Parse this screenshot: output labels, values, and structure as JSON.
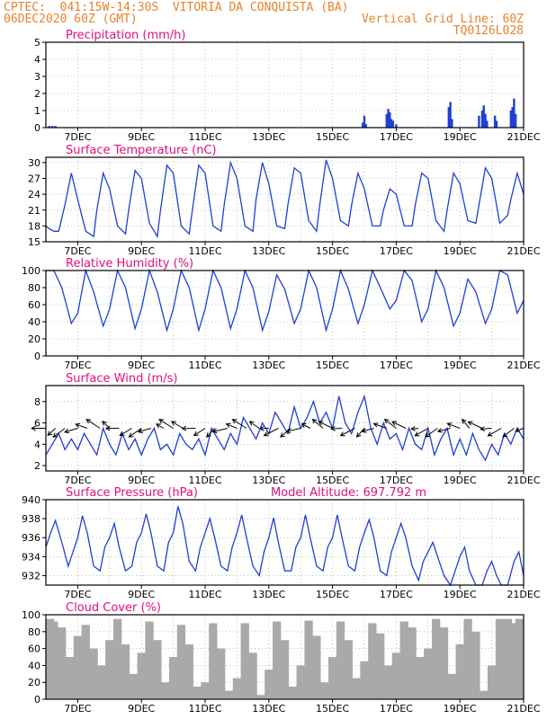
{
  "header": {
    "line1": "CPTEC:  041:15W-14:30S  VITORIA DA CONQUISTA (BA)",
    "line2_left": "06DEC2020 60Z (GMT)",
    "line2_right": "Vertical Grid Line: 60Z",
    "line3_right": "TQ0126L028"
  },
  "colors": {
    "header": "#e8822a",
    "panel_title": "#e0107e",
    "series": "#1f3fd6",
    "cloud": "#a9a9a9",
    "wind_arrow": "#000000",
    "grid": "#999999"
  },
  "chart_data": [
    {
      "type": "bar",
      "title": "Precipitation (mm/h)",
      "ylim": [
        0,
        5
      ],
      "yticks": [
        "0",
        "1",
        "2",
        "3",
        "4",
        "5"
      ],
      "xticks": [
        "7DEC",
        "9DEC",
        "11DEC",
        "13DEC",
        "15DEC",
        "17DEC",
        "19DEC",
        "21DEC"
      ],
      "x": [
        6.1,
        6.2,
        6.3,
        15.95,
        16.0,
        16.05,
        16.7,
        16.75,
        16.8,
        16.85,
        16.9,
        17.0,
        18.65,
        18.7,
        18.75,
        19.6,
        19.7,
        19.75,
        19.8,
        19.85,
        20.1,
        20.15,
        20.6,
        20.65,
        20.7,
        20.75
      ],
      "values": [
        0.1,
        0.1,
        0.1,
        0.3,
        0.7,
        0.2,
        0.8,
        1.1,
        0.9,
        0.5,
        0.4,
        0.2,
        1.2,
        1.5,
        0.5,
        0.7,
        1.0,
        1.3,
        0.8,
        0.4,
        0.7,
        0.4,
        1.0,
        1.2,
        1.7,
        0.8
      ]
    },
    {
      "type": "line",
      "title": "Surface Temperature (nC)",
      "ylim": [
        15,
        31
      ],
      "yticks": [
        "15",
        "18",
        "21",
        "24",
        "27",
        "30"
      ],
      "xticks": [
        "7DEC",
        "9DEC",
        "11DEC",
        "13DEC",
        "15DEC",
        "17DEC",
        "19DEC",
        "21DEC"
      ],
      "x": [
        6.0,
        6.1,
        6.25,
        6.4,
        6.6,
        6.8,
        7.0,
        7.25,
        7.5,
        7.6,
        7.8,
        8.0,
        8.25,
        8.5,
        8.6,
        8.8,
        9.0,
        9.25,
        9.5,
        9.6,
        9.8,
        10.0,
        10.25,
        10.5,
        10.6,
        10.8,
        11.0,
        11.25,
        11.5,
        11.6,
        11.8,
        12.0,
        12.25,
        12.5,
        12.6,
        12.8,
        13.0,
        13.25,
        13.5,
        13.6,
        13.8,
        14.0,
        14.25,
        14.5,
        14.6,
        14.8,
        15.0,
        15.25,
        15.5,
        15.6,
        15.8,
        16.0,
        16.25,
        16.5,
        16.6,
        16.8,
        17.0,
        17.25,
        17.5,
        17.6,
        17.8,
        18.0,
        18.25,
        18.5,
        18.6,
        18.8,
        19.0,
        19.25,
        19.5,
        19.6,
        19.8,
        20.0,
        20.25,
        20.5,
        20.6,
        20.8,
        21.0
      ],
      "values": [
        18,
        17.5,
        17,
        17,
        22,
        28,
        23,
        17,
        16,
        21,
        28,
        25,
        18,
        16.5,
        21,
        28.5,
        27,
        18.5,
        16,
        21,
        29.5,
        28,
        18,
        16.5,
        21,
        29.5,
        28,
        18,
        17,
        22,
        30,
        27,
        18,
        17,
        23,
        30,
        26,
        18,
        17.5,
        22,
        29,
        28,
        19,
        17,
        22,
        30.5,
        27,
        19,
        18,
        22,
        28,
        25,
        18,
        18,
        21,
        25,
        24,
        18,
        18,
        22,
        28,
        27,
        19,
        17,
        21,
        28,
        26,
        19,
        18.5,
        22,
        29,
        27,
        18.5,
        20,
        23,
        28,
        24
      ]
    },
    {
      "type": "line",
      "title": "Relative Humidity (%)",
      "ylim": [
        0,
        100
      ],
      "yticks": [
        "0",
        "20",
        "40",
        "60",
        "80",
        "100"
      ],
      "xticks": [
        "7DEC",
        "9DEC",
        "11DEC",
        "13DEC",
        "15DEC",
        "17DEC",
        "19DEC",
        "21DEC"
      ],
      "x": [
        6.0,
        6.25,
        6.5,
        6.8,
        7.0,
        7.25,
        7.5,
        7.8,
        8.0,
        8.25,
        8.5,
        8.8,
        9.0,
        9.25,
        9.5,
        9.8,
        10.0,
        10.25,
        10.5,
        10.8,
        11.0,
        11.25,
        11.5,
        11.8,
        12.0,
        12.25,
        12.5,
        12.8,
        13.0,
        13.25,
        13.5,
        13.8,
        14.0,
        14.25,
        14.5,
        14.8,
        15.0,
        15.25,
        15.5,
        15.8,
        16.0,
        16.25,
        16.5,
        16.8,
        17.0,
        17.25,
        17.5,
        17.8,
        18.0,
        18.25,
        18.5,
        18.8,
        19.0,
        19.25,
        19.5,
        19.8,
        20.0,
        20.25,
        20.5,
        20.8,
        21.0
      ],
      "values": [
        100,
        100,
        80,
        38,
        50,
        100,
        75,
        35,
        55,
        100,
        80,
        32,
        55,
        100,
        75,
        30,
        55,
        100,
        80,
        30,
        55,
        100,
        80,
        32,
        55,
        100,
        80,
        30,
        52,
        95,
        78,
        38,
        55,
        100,
        80,
        30,
        55,
        100,
        78,
        38,
        60,
        100,
        80,
        55,
        65,
        100,
        88,
        40,
        55,
        100,
        80,
        35,
        50,
        90,
        75,
        38,
        55,
        100,
        95,
        50,
        65
      ]
    },
    {
      "type": "line",
      "title": "Surface Wind (m/s)",
      "ylim": [
        1.5,
        9.5
      ],
      "yticks": [
        "2",
        "4",
        "6",
        "8"
      ],
      "xticks": [
        "7DEC",
        "9DEC",
        "11DEC",
        "13DEC",
        "15DEC",
        "17DEC",
        "19DEC",
        "21DEC"
      ],
      "x": [
        6.0,
        6.2,
        6.4,
        6.6,
        6.8,
        7.0,
        7.2,
        7.4,
        7.6,
        7.8,
        8.0,
        8.2,
        8.4,
        8.6,
        8.8,
        9.0,
        9.2,
        9.4,
        9.6,
        9.8,
        10.0,
        10.2,
        10.4,
        10.6,
        10.8,
        11.0,
        11.2,
        11.4,
        11.6,
        11.8,
        12.0,
        12.2,
        12.4,
        12.6,
        12.8,
        13.0,
        13.2,
        13.4,
        13.6,
        13.8,
        14.0,
        14.2,
        14.4,
        14.6,
        14.8,
        15.0,
        15.2,
        15.4,
        15.6,
        15.8,
        16.0,
        16.2,
        16.4,
        16.6,
        16.8,
        17.0,
        17.2,
        17.4,
        17.6,
        17.8,
        18.0,
        18.2,
        18.4,
        18.6,
        18.8,
        19.0,
        19.2,
        19.4,
        19.6,
        19.8,
        20.0,
        20.2,
        20.4,
        20.6,
        20.8,
        21.0
      ],
      "values": [
        3,
        4,
        5,
        3.5,
        4.5,
        3.5,
        5,
        4,
        3,
        5.5,
        4,
        3,
        5,
        3.5,
        4.5,
        3,
        4.5,
        5.5,
        3.5,
        4,
        3,
        5,
        4,
        3.5,
        4.5,
        3,
        5.5,
        4.5,
        3.5,
        5,
        4,
        6.5,
        5.5,
        4.5,
        6,
        5,
        7,
        6,
        5,
        7.5,
        5.5,
        6.5,
        8,
        6,
        7,
        5.5,
        8.5,
        6,
        5,
        7,
        8.5,
        5.5,
        4,
        6,
        4.5,
        5,
        3.5,
        5.5,
        4,
        3.5,
        5.5,
        3,
        4.5,
        5.5,
        3,
        4.5,
        3,
        5,
        3.5,
        2.5,
        4,
        3,
        5,
        4,
        5.5,
        4.5
      ],
      "arrows_x": [
        6.0,
        6.3,
        6.6,
        7.0,
        7.3,
        7.7,
        8.0,
        8.3,
        8.7,
        9.0,
        9.3,
        9.7,
        10.0,
        10.3,
        10.7,
        11.0,
        11.3,
        11.7,
        12.0,
        12.3,
        12.7,
        13.0,
        13.3,
        13.7,
        14.0,
        14.3,
        14.7,
        15.0,
        15.3,
        15.7,
        16.0,
        16.3,
        16.7,
        17.0,
        17.3,
        17.7,
        18.0,
        18.3,
        18.7,
        19.0,
        19.3,
        19.7,
        20.0,
        20.3,
        20.7,
        21.0
      ]
    },
    {
      "type": "line",
      "title": "Surface Pressure (hPa)",
      "annotation": "Model Altitude: 697.792 m",
      "ylim": [
        931,
        940
      ],
      "yticks": [
        "932",
        "934",
        "936",
        "938",
        "940"
      ],
      "xticks": [
        "7DEC",
        "9DEC",
        "11DEC",
        "13DEC",
        "15DEC",
        "17DEC",
        "19DEC",
        "21DEC"
      ],
      "x": [
        6.0,
        6.15,
        6.3,
        6.5,
        6.7,
        6.85,
        7.0,
        7.15,
        7.3,
        7.5,
        7.7,
        7.85,
        8.0,
        8.15,
        8.3,
        8.5,
        8.7,
        8.85,
        9.0,
        9.15,
        9.3,
        9.5,
        9.7,
        9.85,
        10.0,
        10.15,
        10.3,
        10.5,
        10.7,
        10.85,
        11.0,
        11.15,
        11.3,
        11.5,
        11.7,
        11.85,
        12.0,
        12.15,
        12.3,
        12.5,
        12.7,
        12.85,
        13.0,
        13.15,
        13.3,
        13.5,
        13.7,
        13.85,
        14.0,
        14.15,
        14.3,
        14.5,
        14.7,
        14.85,
        15.0,
        15.15,
        15.3,
        15.5,
        15.7,
        15.85,
        16.0,
        16.15,
        16.3,
        16.5,
        16.7,
        16.85,
        17.0,
        17.15,
        17.3,
        17.5,
        17.7,
        17.85,
        18.0,
        18.15,
        18.3,
        18.5,
        18.7,
        18.85,
        19.0,
        19.15,
        19.3,
        19.5,
        19.7,
        19.85,
        20.0,
        20.15,
        20.3,
        20.5,
        20.7,
        20.85,
        21.0
      ],
      "values": [
        935,
        936.5,
        937.8,
        935.5,
        933,
        934.5,
        936,
        938.3,
        936.5,
        933,
        932.5,
        935,
        936,
        937.5,
        935,
        932.5,
        933,
        935.5,
        936.5,
        938.5,
        936.5,
        933,
        932.5,
        935.5,
        936.5,
        939.3,
        937.5,
        933.5,
        932.5,
        935,
        936.5,
        938,
        936,
        933,
        932.5,
        935,
        936.5,
        938.4,
        936,
        933,
        932,
        934.5,
        936,
        938.1,
        935.5,
        932.5,
        932.5,
        935,
        936,
        938.4,
        936,
        933,
        932.5,
        935,
        936,
        938.4,
        936,
        933,
        932.5,
        935,
        936.5,
        937.9,
        936,
        932.5,
        932,
        934.5,
        936,
        937.5,
        936,
        933,
        931.5,
        933.5,
        934.5,
        935.5,
        934,
        932,
        931,
        932.5,
        934,
        935,
        932.5,
        931,
        931,
        932.5,
        933.5,
        932,
        931,
        931,
        933.5,
        934.5,
        932
      ]
    },
    {
      "type": "bar",
      "title": "Cloud Cover (%)",
      "ylim": [
        0,
        100
      ],
      "yticks": [
        "0",
        "20",
        "40",
        "60",
        "80",
        "100"
      ],
      "xticks": [
        "7DEC",
        "9DEC",
        "11DEC",
        "13DEC",
        "15DEC",
        "17DEC",
        "19DEC",
        "21DEC"
      ],
      "x": [
        6.0,
        6.25,
        6.5,
        6.75,
        7.0,
        7.25,
        7.5,
        7.75,
        8.0,
        8.25,
        8.5,
        8.75,
        9.0,
        9.25,
        9.5,
        9.75,
        10.0,
        10.25,
        10.5,
        10.75,
        11.0,
        11.25,
        11.5,
        11.75,
        12.0,
        12.25,
        12.5,
        12.75,
        13.0,
        13.25,
        13.5,
        13.75,
        14.0,
        14.25,
        14.5,
        14.75,
        15.0,
        15.25,
        15.5,
        15.75,
        16.0,
        16.25,
        16.5,
        16.75,
        17.0,
        17.25,
        17.5,
        17.75,
        18.0,
        18.25,
        18.5,
        18.75,
        19.0,
        19.25,
        19.5,
        19.75,
        20.0,
        20.25,
        20.5,
        20.75,
        21.0
      ],
      "values": [
        95,
        92,
        85,
        50,
        75,
        88,
        60,
        40,
        70,
        95,
        65,
        30,
        55,
        92,
        70,
        20,
        50,
        88,
        65,
        15,
        20,
        90,
        60,
        10,
        25,
        90,
        55,
        5,
        35,
        92,
        70,
        15,
        40,
        93,
        75,
        20,
        50,
        92,
        70,
        25,
        45,
        90,
        78,
        40,
        55,
        92,
        85,
        50,
        60,
        95,
        85,
        30,
        65,
        95,
        80,
        10,
        40,
        95,
        95,
        90,
        95
      ]
    }
  ]
}
